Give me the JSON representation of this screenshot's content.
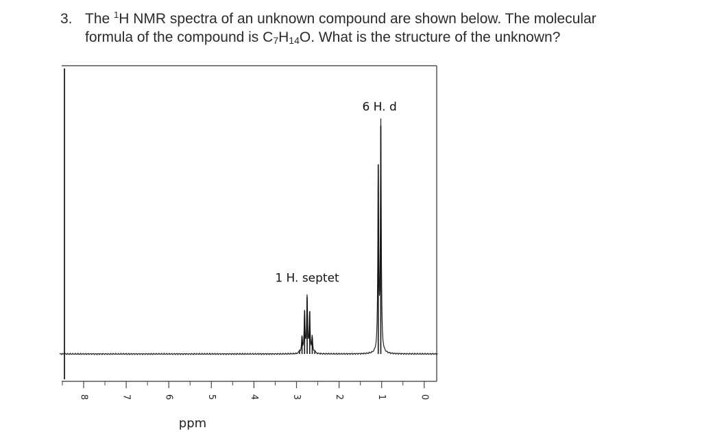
{
  "question": {
    "number": "3.",
    "line1_a": "The ",
    "line1_sup": "1",
    "line1_b": "H NMR spectra of an unknown compound are shown below. The molecular",
    "line2_a": "formula of the compound is C",
    "sub1": "7",
    "line2_b": "H",
    "sub2": "14",
    "line2_c": "O.  What is the structure of the unknown?"
  },
  "chart_data": {
    "type": "line",
    "xlabel": "ppm",
    "xlim": [
      8.5,
      0
    ],
    "x_ticks": [
      8,
      7,
      6,
      5,
      4,
      3,
      2,
      1,
      0
    ],
    "y_axis_shown": false,
    "peaks": [
      {
        "label": "1 H. septet",
        "multiplicity": "septet",
        "integration": 1,
        "center_ppm": 2.75,
        "j_ppm": 0.06,
        "max_height": 0.22
      },
      {
        "label": "6 H. d",
        "multiplicity": "doublet",
        "integration": 6,
        "center_ppm": 1.05,
        "j_ppm": 0.06,
        "max_height": 0.88
      }
    ]
  }
}
